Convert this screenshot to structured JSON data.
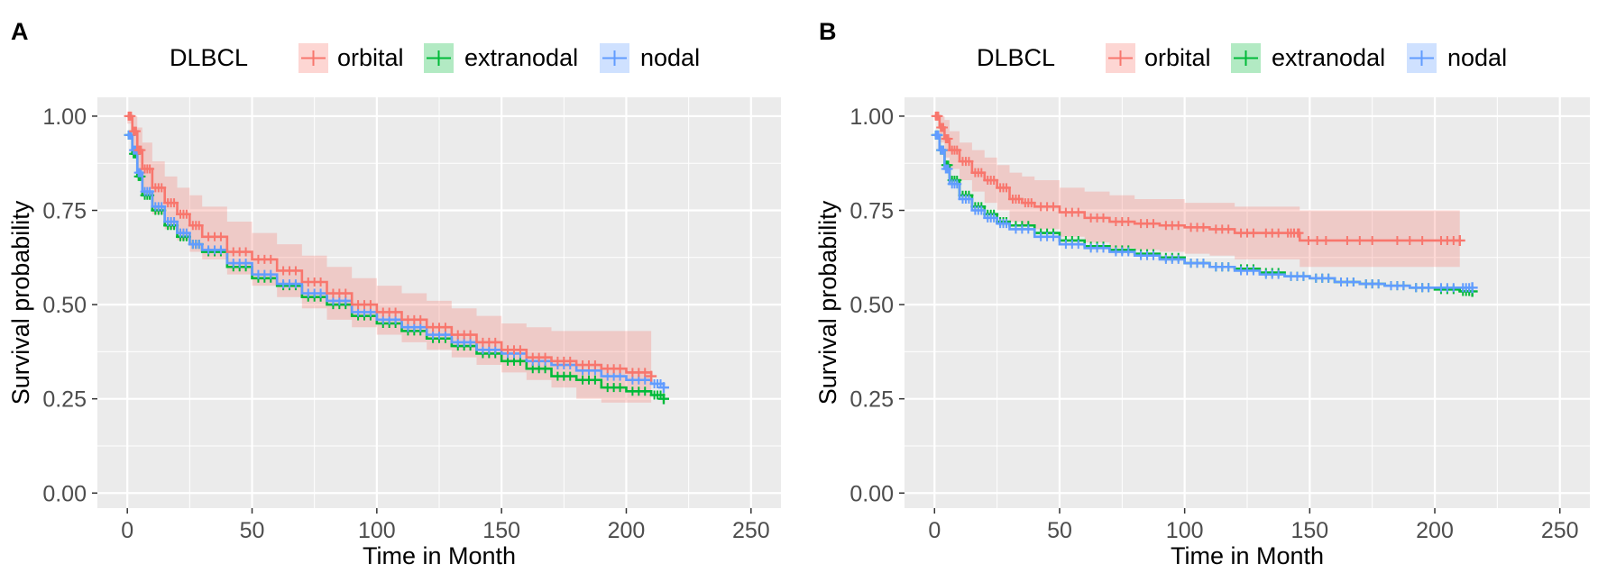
{
  "panel_labels": [
    "A",
    "B"
  ],
  "legend": {
    "title": "DLBCL",
    "entries": [
      "orbital",
      "extranodal",
      "nodal"
    ]
  },
  "colors": {
    "orbital": "#F8766D",
    "extranodal": "#00BA38",
    "nodal": "#619CFF",
    "panel_bg": "#EBEBEB",
    "grid": "#FFFFFF",
    "text": "#000000",
    "tick_text": "#4D4D4D"
  },
  "chart_data": [
    {
      "type": "line",
      "panel": "A",
      "title": "",
      "xlabel": "Time in Month",
      "ylabel": "Survival probability",
      "xlim": [
        -12,
        262
      ],
      "ylim": [
        -0.04,
        1.05
      ],
      "xticks": [
        0,
        50,
        100,
        150,
        200,
        250
      ],
      "xtick_labels": [
        "0",
        "50",
        "100",
        "150",
        "200",
        "250"
      ],
      "yticks": [
        0,
        0.25,
        0.5,
        0.75,
        1
      ],
      "ytick_labels": [
        "0.00",
        "0.25",
        "0.50",
        "0.75",
        "1.00"
      ],
      "grid": true,
      "series": [
        {
          "name": "orbital",
          "x": [
            0,
            2,
            4,
            6,
            10,
            15,
            20,
            25,
            30,
            40,
            50,
            60,
            70,
            80,
            90,
            100,
            110,
            120,
            130,
            140,
            150,
            160,
            170,
            180,
            190,
            200,
            210
          ],
          "y": [
            1.0,
            0.96,
            0.91,
            0.86,
            0.81,
            0.77,
            0.74,
            0.71,
            0.68,
            0.64,
            0.62,
            0.59,
            0.56,
            0.53,
            0.5,
            0.48,
            0.46,
            0.44,
            0.42,
            0.4,
            0.38,
            0.36,
            0.35,
            0.34,
            0.33,
            0.32,
            0.31
          ],
          "ci_lower": [
            0.98,
            0.9,
            0.84,
            0.79,
            0.74,
            0.7,
            0.67,
            0.64,
            0.62,
            0.58,
            0.55,
            0.52,
            0.49,
            0.46,
            0.44,
            0.42,
            0.4,
            0.38,
            0.36,
            0.34,
            0.32,
            0.3,
            0.28,
            0.25,
            0.24,
            0.24,
            0.23
          ],
          "ci_upper": [
            1.0,
            1.0,
            0.97,
            0.93,
            0.88,
            0.84,
            0.81,
            0.79,
            0.76,
            0.72,
            0.69,
            0.66,
            0.63,
            0.6,
            0.57,
            0.55,
            0.53,
            0.51,
            0.49,
            0.47,
            0.45,
            0.44,
            0.43,
            0.43,
            0.43,
            0.43,
            0.43
          ]
        },
        {
          "name": "extranodal",
          "x": [
            0,
            2,
            4,
            6,
            10,
            15,
            20,
            25,
            30,
            40,
            50,
            60,
            70,
            80,
            90,
            100,
            110,
            120,
            130,
            140,
            150,
            160,
            170,
            180,
            190,
            200,
            210,
            215
          ],
          "y": [
            0.95,
            0.9,
            0.84,
            0.79,
            0.75,
            0.71,
            0.68,
            0.66,
            0.64,
            0.6,
            0.57,
            0.55,
            0.52,
            0.5,
            0.47,
            0.45,
            0.43,
            0.41,
            0.39,
            0.37,
            0.35,
            0.33,
            0.31,
            0.3,
            0.28,
            0.27,
            0.26,
            0.25
          ]
        },
        {
          "name": "nodal",
          "x": [
            0,
            2,
            4,
            6,
            10,
            15,
            20,
            25,
            30,
            40,
            50,
            60,
            70,
            80,
            90,
            100,
            110,
            120,
            130,
            140,
            150,
            160,
            170,
            180,
            190,
            200,
            210,
            215
          ],
          "y": [
            0.95,
            0.91,
            0.85,
            0.8,
            0.76,
            0.72,
            0.69,
            0.66,
            0.645,
            0.61,
            0.58,
            0.555,
            0.53,
            0.51,
            0.48,
            0.46,
            0.44,
            0.42,
            0.4,
            0.38,
            0.37,
            0.35,
            0.34,
            0.325,
            0.31,
            0.3,
            0.29,
            0.28
          ]
        }
      ]
    },
    {
      "type": "line",
      "panel": "B",
      "title": "",
      "xlabel": "Time in Month",
      "ylabel": "Survival probability",
      "xlim": [
        -12,
        262
      ],
      "ylim": [
        -0.04,
        1.05
      ],
      "xticks": [
        0,
        50,
        100,
        150,
        200,
        250
      ],
      "xtick_labels": [
        "0",
        "50",
        "100",
        "150",
        "200",
        "250"
      ],
      "yticks": [
        0,
        0.25,
        0.5,
        0.75,
        1
      ],
      "ytick_labels": [
        "0.00",
        "0.25",
        "0.50",
        "0.75",
        "1.00"
      ],
      "grid": true,
      "series": [
        {
          "name": "orbital",
          "x": [
            0,
            2,
            4,
            6,
            10,
            15,
            20,
            25,
            30,
            35,
            40,
            50,
            60,
            70,
            80,
            90,
            100,
            110,
            120,
            130,
            140,
            145,
            146,
            160,
            180,
            200,
            210
          ],
          "y": [
            1.0,
            0.97,
            0.94,
            0.91,
            0.88,
            0.85,
            0.83,
            0.81,
            0.78,
            0.77,
            0.76,
            0.745,
            0.73,
            0.72,
            0.715,
            0.71,
            0.705,
            0.7,
            0.69,
            0.69,
            0.69,
            0.69,
            0.67,
            0.67,
            0.67,
            0.67,
            0.67
          ],
          "ci_lower": [
            0.99,
            0.93,
            0.89,
            0.86,
            0.83,
            0.8,
            0.77,
            0.75,
            0.72,
            0.71,
            0.7,
            0.68,
            0.665,
            0.65,
            0.645,
            0.64,
            0.635,
            0.63,
            0.62,
            0.62,
            0.62,
            0.62,
            0.6,
            0.6,
            0.6,
            0.6,
            0.6
          ],
          "ci_upper": [
            1.0,
            1.0,
            0.99,
            0.96,
            0.93,
            0.91,
            0.89,
            0.87,
            0.85,
            0.84,
            0.83,
            0.81,
            0.8,
            0.79,
            0.78,
            0.78,
            0.77,
            0.77,
            0.76,
            0.76,
            0.76,
            0.76,
            0.75,
            0.75,
            0.75,
            0.75,
            0.75
          ]
        },
        {
          "name": "extranodal",
          "x": [
            0,
            2,
            4,
            6,
            10,
            15,
            20,
            25,
            30,
            40,
            50,
            60,
            70,
            80,
            90,
            100,
            110,
            120,
            130,
            140,
            150,
            160,
            170,
            180,
            190,
            200,
            210,
            215
          ],
          "y": [
            0.95,
            0.91,
            0.87,
            0.83,
            0.79,
            0.76,
            0.74,
            0.72,
            0.71,
            0.69,
            0.67,
            0.655,
            0.645,
            0.635,
            0.625,
            0.61,
            0.6,
            0.595,
            0.585,
            0.575,
            0.57,
            0.56,
            0.555,
            0.55,
            0.545,
            0.54,
            0.535,
            0.535
          ]
        },
        {
          "name": "nodal",
          "x": [
            0,
            2,
            4,
            6,
            10,
            15,
            20,
            25,
            30,
            40,
            50,
            60,
            70,
            80,
            90,
            100,
            110,
            120,
            130,
            140,
            150,
            160,
            170,
            180,
            190,
            200,
            210,
            215
          ],
          "y": [
            0.95,
            0.91,
            0.86,
            0.82,
            0.78,
            0.75,
            0.73,
            0.715,
            0.7,
            0.68,
            0.66,
            0.65,
            0.64,
            0.63,
            0.62,
            0.61,
            0.6,
            0.59,
            0.58,
            0.575,
            0.57,
            0.56,
            0.555,
            0.55,
            0.545,
            0.545,
            0.545,
            0.545
          ]
        }
      ]
    }
  ]
}
